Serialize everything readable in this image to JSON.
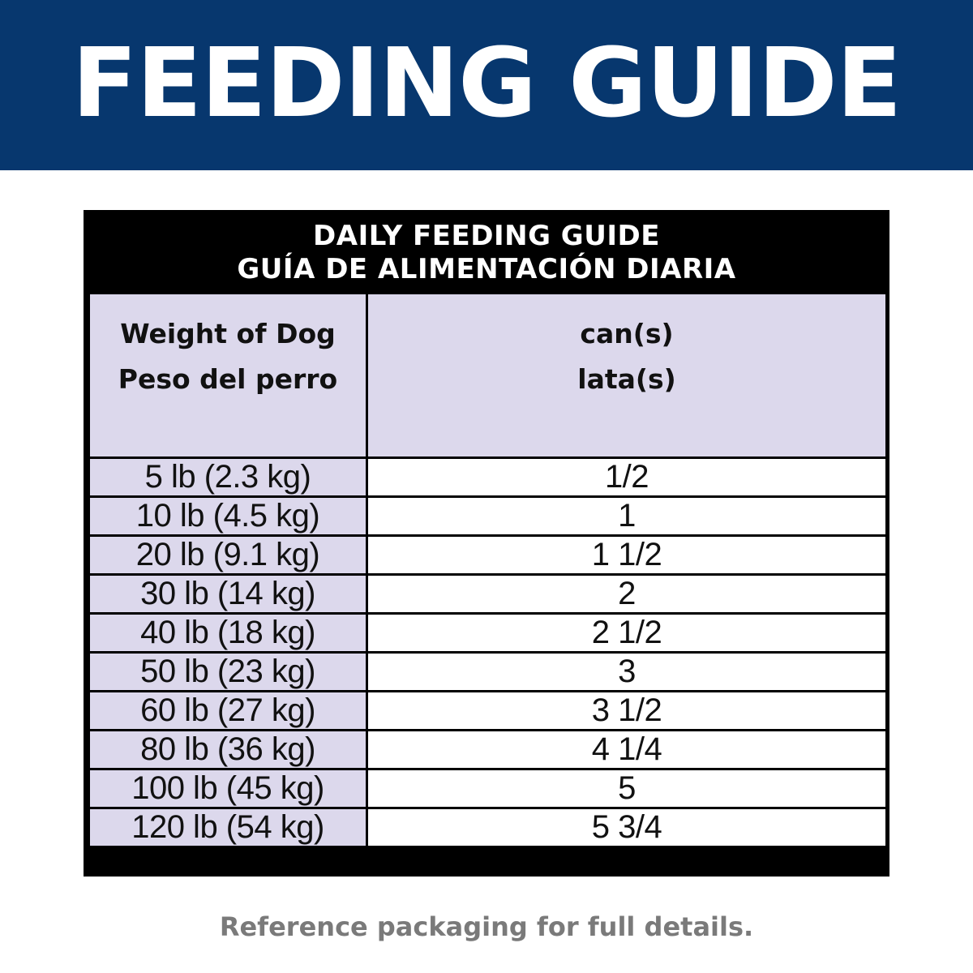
{
  "banner": {
    "title": "FEEDING GUIDE"
  },
  "guide": {
    "header_line_1": "DAILY FEEDING GUIDE",
    "header_line_2": "GUÍA DE ALIMENTACIÓN DIARIA",
    "columns": {
      "weight_en": "Weight of Dog",
      "weight_es": "Peso del perro",
      "cans_en": "can(s)",
      "cans_es": "lata(s)"
    },
    "rows": [
      {
        "weight": "5 lb (2.3 kg)",
        "cans": "1/2"
      },
      {
        "weight": "10 lb (4.5 kg)",
        "cans": "1"
      },
      {
        "weight": "20 lb (9.1 kg)",
        "cans": "1 1/2"
      },
      {
        "weight": "30 lb (14 kg)",
        "cans": "2"
      },
      {
        "weight": "40 lb (18 kg)",
        "cans": "2 1/2"
      },
      {
        "weight": "50 lb (23 kg)",
        "cans": "3"
      },
      {
        "weight": "60 lb (27 kg)",
        "cans": "3 1/2"
      },
      {
        "weight": "80 lb (36 kg)",
        "cans": "4 1/4"
      },
      {
        "weight": "100 lb (45 kg)",
        "cans": "5"
      },
      {
        "weight": "120 lb (54 kg)",
        "cans": "5 3/4"
      }
    ]
  },
  "footer": {
    "note": "Reference packaging for full details."
  },
  "colors": {
    "banner_blue": "#07376e",
    "header_black": "#000000",
    "lavender": "#dcd8ec",
    "footer_gray": "#7a7a7a"
  }
}
